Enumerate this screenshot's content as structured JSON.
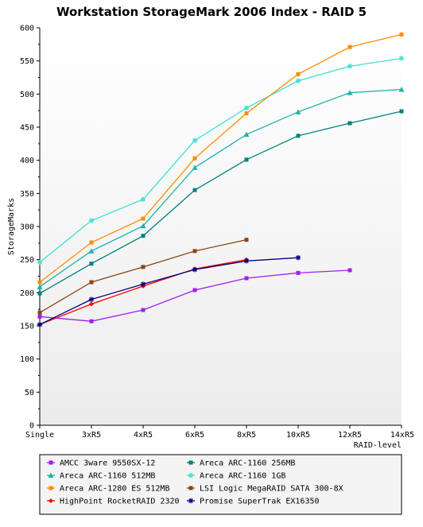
{
  "chart_data": {
    "type": "line",
    "title": "Workstation StorageMark 2006 Index - RAID 5",
    "xlabel": "RAID-level",
    "ylabel": "StorageMarks",
    "categories": [
      "Single",
      "3xR5",
      "4xR5",
      "6xR5",
      "8xR5",
      "10xR5",
      "12xR5",
      "14xR5"
    ],
    "ylim": [
      0,
      600
    ],
    "yticks": [
      0,
      50,
      100,
      150,
      200,
      250,
      300,
      350,
      400,
      450,
      500,
      550,
      600
    ],
    "grid": false,
    "legend_position": "bottom",
    "series": [
      {
        "name": "AMCC 3ware 9550SX-12",
        "color": "#a020f0",
        "marker": "square",
        "values": [
          164,
          157,
          174,
          204,
          222,
          230,
          234,
          null
        ]
      },
      {
        "name": "Areca ARC-1160 256MB",
        "color": "#008080",
        "marker": "square",
        "values": [
          199,
          244,
          286,
          355,
          401,
          437,
          456,
          474
        ]
      },
      {
        "name": "Areca ARC-1160 512MB",
        "color": "#20b2aa",
        "marker": "triangle",
        "values": [
          209,
          263,
          301,
          389,
          439,
          473,
          502,
          507
        ]
      },
      {
        "name": "Areca ARC-1160 1GB",
        "color": "#40e0d0",
        "marker": "star",
        "values": [
          246,
          309,
          341,
          430,
          479,
          520,
          542,
          554
        ]
      },
      {
        "name": "Areca ARC-1280 ES 512MB",
        "color": "#ff8c00",
        "marker": "square",
        "values": [
          216,
          276,
          312,
          403,
          471,
          530,
          571,
          590
        ]
      },
      {
        "name": "LSI Logic MegaRAID SATA 300-8X",
        "color": "#8b4513",
        "marker": "square",
        "values": [
          170,
          216,
          239,
          263,
          280,
          null,
          null,
          null
        ]
      },
      {
        "name": "HighPoint RocketRAID 2320",
        "color": "#ff0000",
        "marker": "diamond",
        "values": [
          152,
          183,
          210,
          236,
          250,
          null,
          null,
          null
        ]
      },
      {
        "name": "Promise SuperTrak EX16350",
        "color": "#000080",
        "marker": "star",
        "values": [
          152,
          190,
          213,
          235,
          248,
          253,
          null,
          null
        ]
      }
    ]
  }
}
